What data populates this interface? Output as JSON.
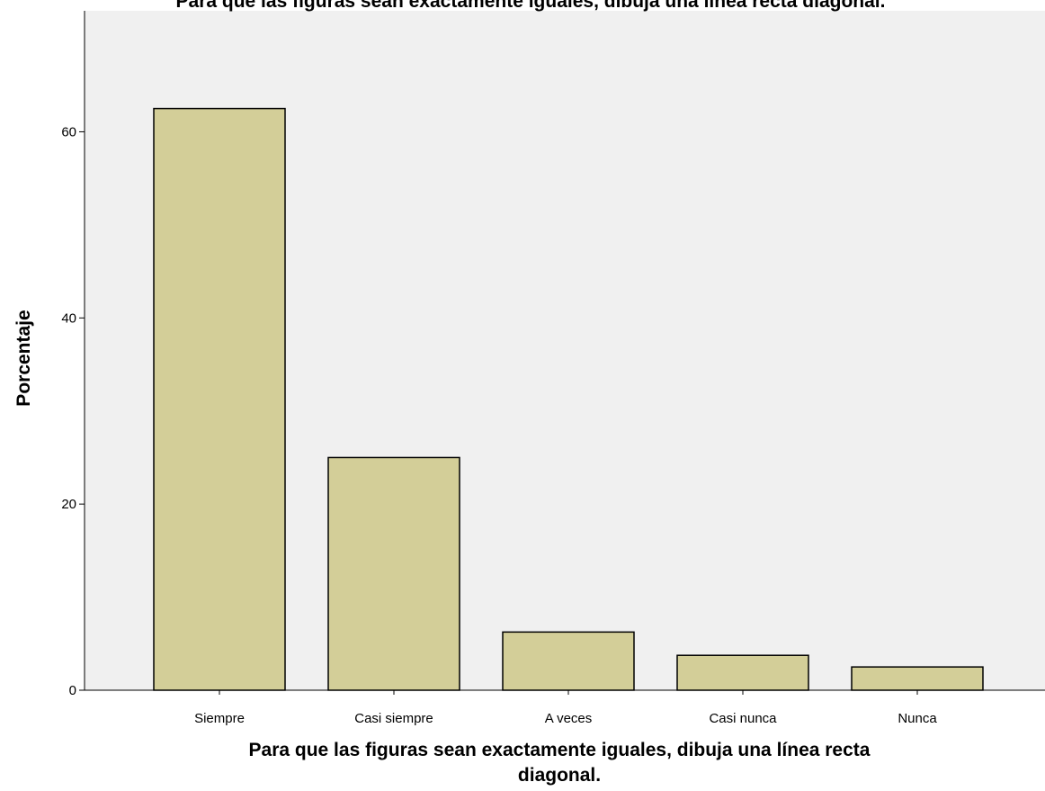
{
  "chart_data": {
    "type": "bar",
    "title": "Para que las figuras sean exactamente iguales, dibuja una línea recta diagonal.",
    "xlabel_lines": [
      "Para que las figuras sean exactamente iguales, dibuja una línea recta",
      "diagonal."
    ],
    "ylabel": "Porcentaje",
    "categories": [
      "Siempre",
      "Casi siempre",
      "A veces",
      "Casi nunca",
      "Nunca"
    ],
    "values": [
      62.5,
      25.0,
      6.25,
      3.75,
      2.5
    ],
    "ylim": [
      0,
      73
    ],
    "yticks": [
      0,
      20,
      40,
      60
    ],
    "grid": false,
    "legend": "none",
    "colors": {
      "bar_fill": "#d3ce98",
      "bar_stroke": "#000000",
      "plot_background": "#f0f0f0",
      "axis": "#000000"
    }
  }
}
